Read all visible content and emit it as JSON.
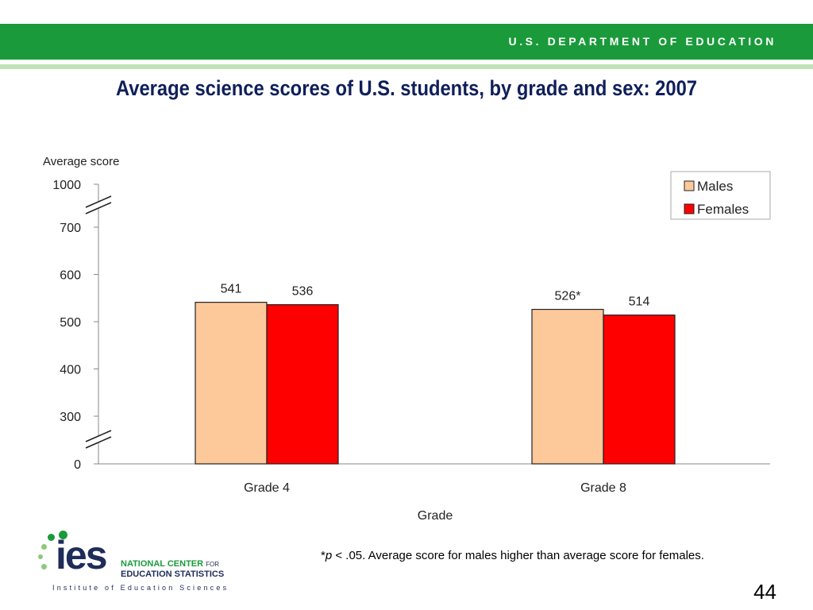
{
  "header": {
    "department": "U.S. DEPARTMENT OF EDUCATION"
  },
  "slide": {
    "title": "Average science scores of U.S. students, by grade and sex: 2007",
    "footnote_star": "*",
    "footnote_p": "p",
    "footnote_text": " < .05. Average score for males higher than average score for females.",
    "page_number": "44"
  },
  "logo": {
    "mark": "ies",
    "line1": "NATIONAL CENTER",
    "line1_small": "FOR",
    "line2": "EDUCATION STATISTICS",
    "tagline": "Institute of Education Sciences"
  },
  "colors": {
    "males": "#fdc99a",
    "females": "#ff0000",
    "header_green": "#1a9a3a"
  },
  "chart_data": {
    "type": "bar",
    "ylabel": "Average score",
    "xlabel": "Grade",
    "categories": [
      "Grade 4",
      "Grade 8"
    ],
    "series": [
      {
        "name": "Males",
        "values": [
          541,
          526
        ],
        "labels": [
          "541",
          "526*"
        ]
      },
      {
        "name": "Females",
        "values": [
          536,
          514
        ],
        "labels": [
          "536",
          "514"
        ]
      }
    ],
    "yticks": [
      0,
      300,
      400,
      500,
      600,
      700,
      1000
    ],
    "ylim_visible": [
      300,
      700
    ],
    "axis_breaks": [
      "0-300",
      "700-1000"
    ],
    "legend_position": "top-right",
    "grid": false
  }
}
